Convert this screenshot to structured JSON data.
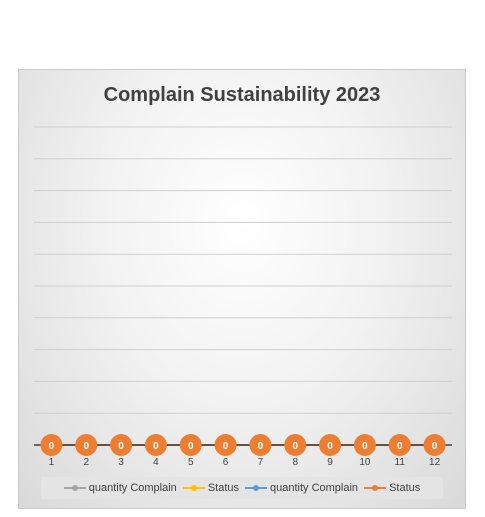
{
  "chart_data": {
    "type": "line",
    "title": "Complain Sustainability 2023",
    "categories": [
      "1",
      "2",
      "3",
      "4",
      "5",
      "6",
      "7",
      "8",
      "9",
      "10",
      "11",
      "12"
    ],
    "series": [
      {
        "name": "quantity Complain",
        "color": "#a5a5a5",
        "values": [
          0,
          0,
          0,
          0,
          0,
          0,
          0,
          0,
          0,
          0,
          0,
          0
        ]
      },
      {
        "name": "Status",
        "color": "#ffc000",
        "values": [
          0,
          0,
          0,
          0,
          0,
          0,
          0,
          0,
          0,
          0,
          0,
          0
        ]
      },
      {
        "name": "quantity Complain",
        "color": "#5b9bd5",
        "values": [
          0,
          0,
          0,
          0,
          0,
          0,
          0,
          0,
          0,
          0,
          0,
          0
        ]
      },
      {
        "name": "Status",
        "color": "#ed7d31",
        "values": [
          0,
          0,
          0,
          0,
          0,
          0,
          0,
          0,
          0,
          0,
          0,
          0
        ]
      }
    ],
    "data_labels": [
      "0",
      "0",
      "0",
      "0",
      "0",
      "0",
      "0",
      "0",
      "0",
      "0",
      "0",
      "0"
    ],
    "grid": true,
    "legend": "bottom"
  }
}
